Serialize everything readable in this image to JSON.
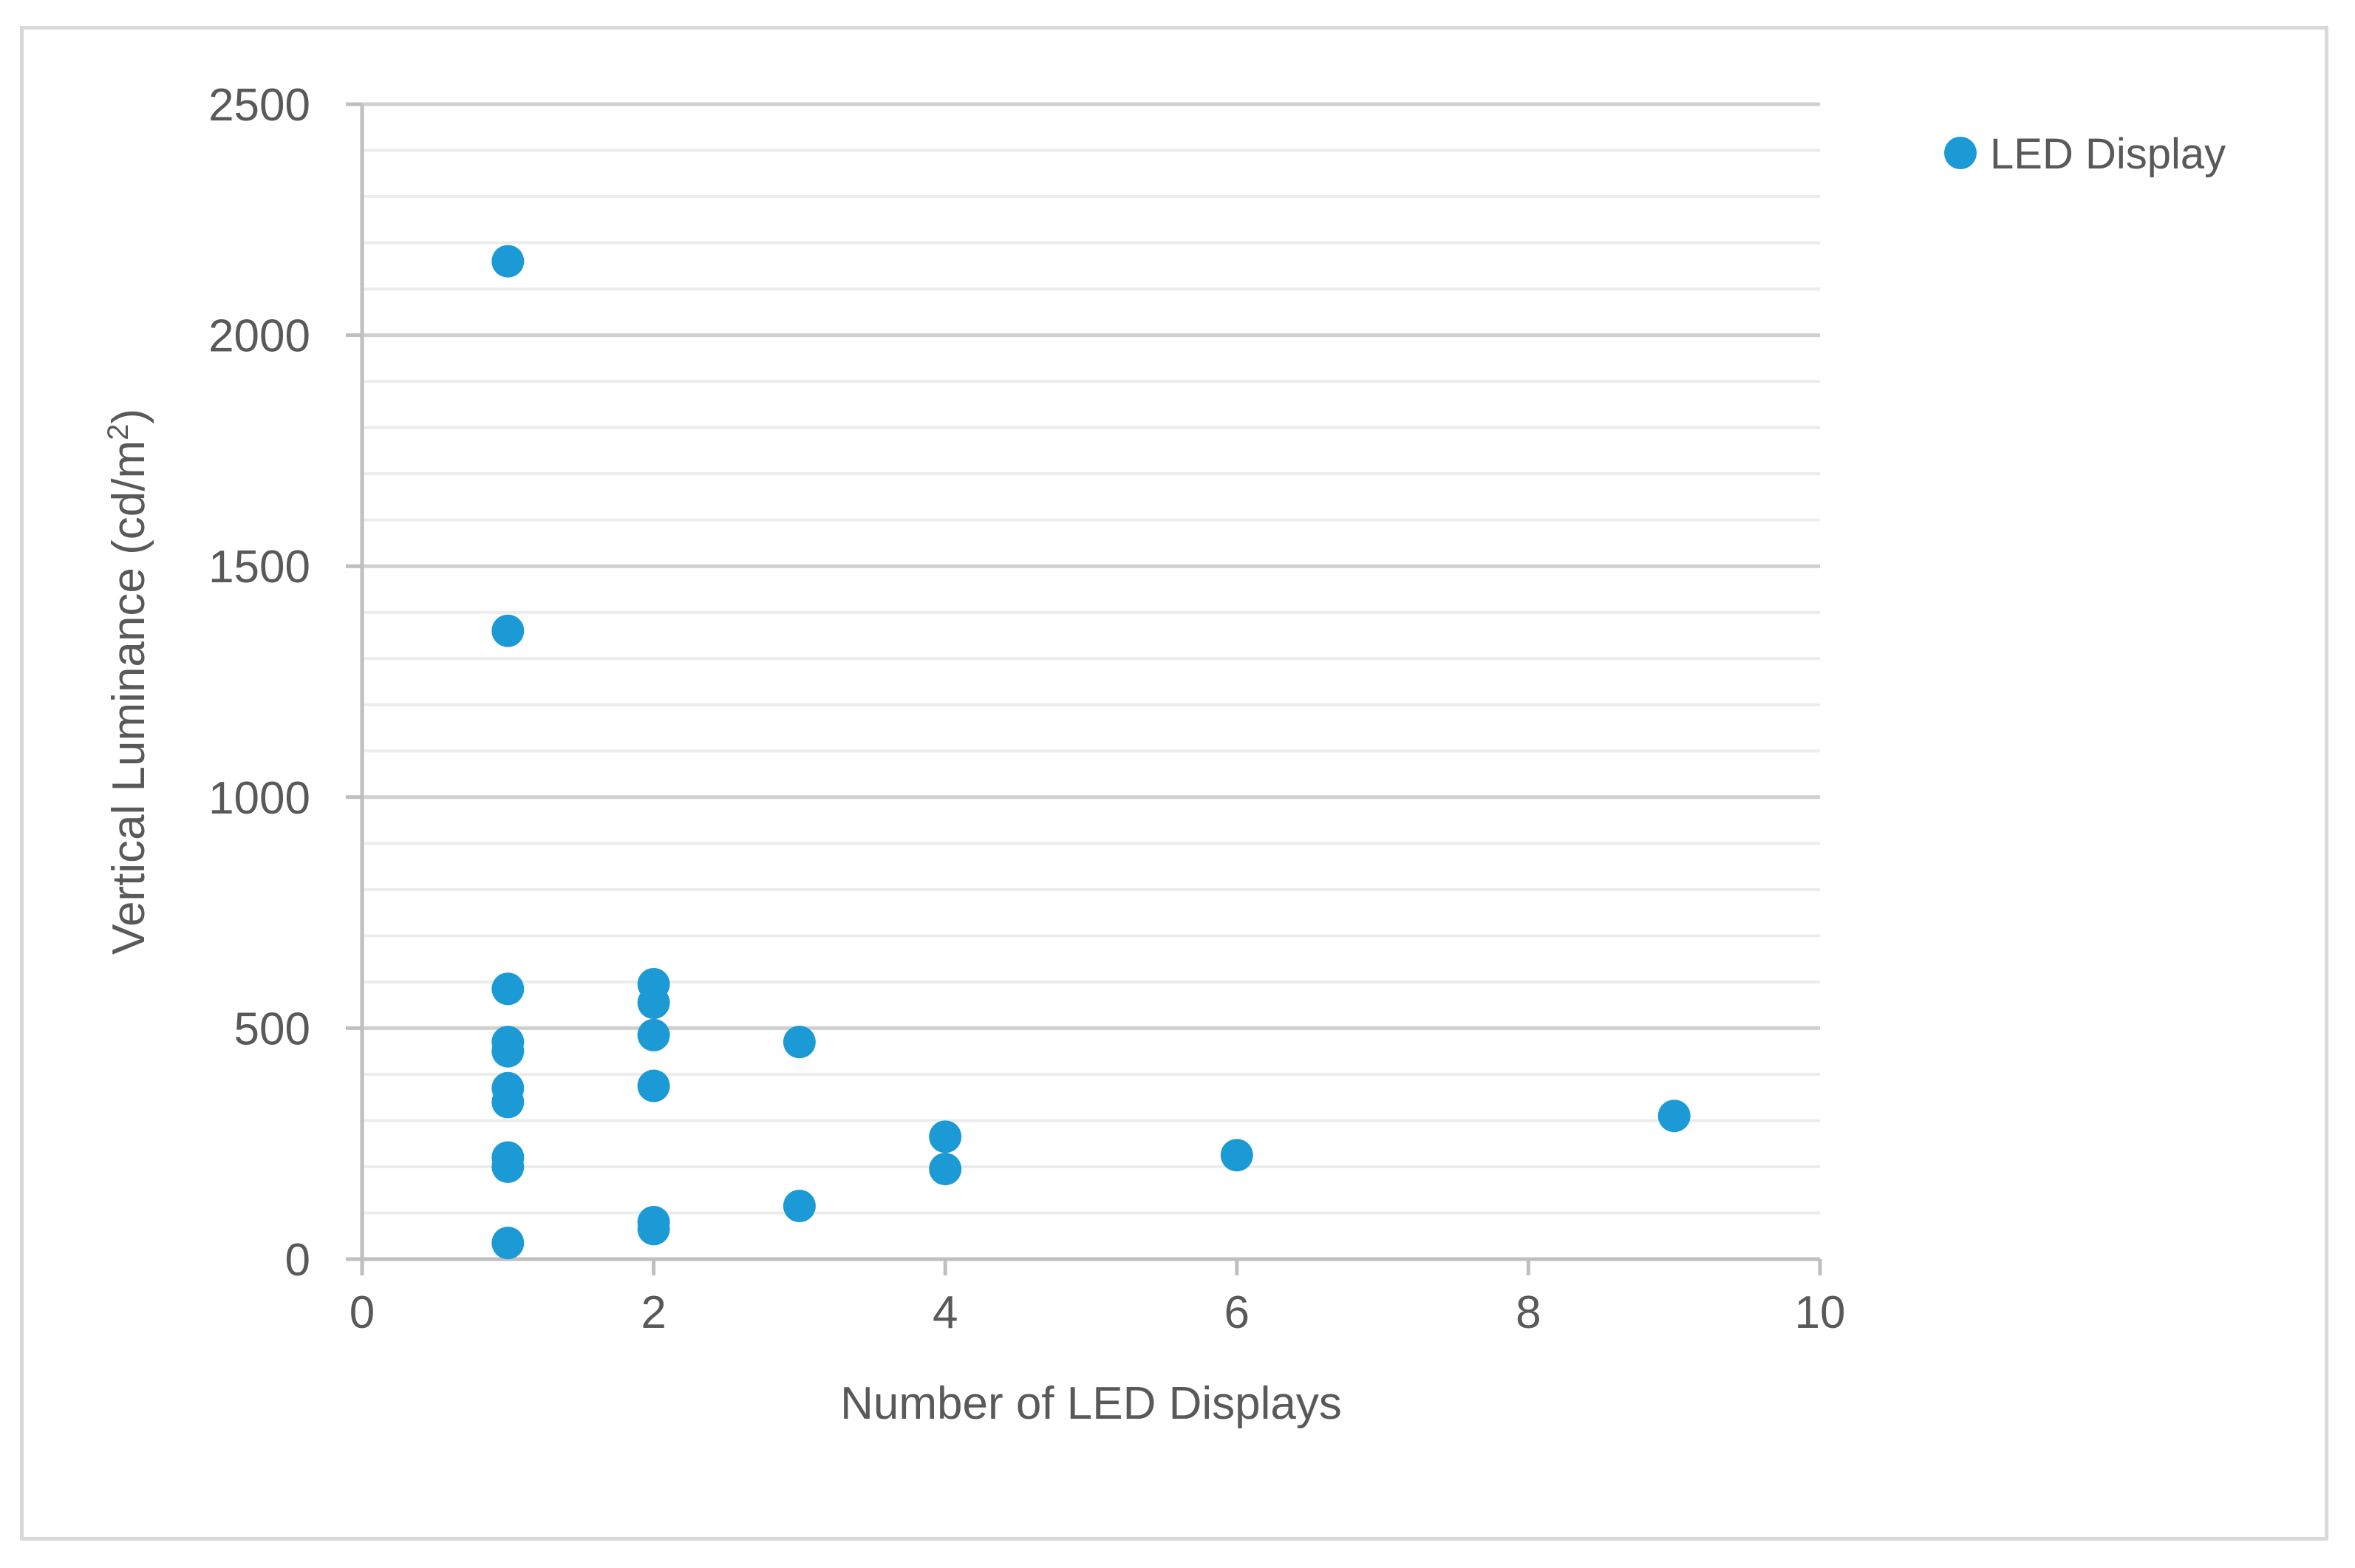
{
  "chart_data": {
    "type": "scatter",
    "title": "",
    "xlabel": "Number of LED Displays",
    "ylabel": {
      "text": "Vertical Luminance (cd/m",
      "superscript": "2",
      "suffix": ")"
    },
    "xlim": [
      0,
      10
    ],
    "ylim": [
      0,
      2500
    ],
    "x_ticks": [
      0,
      2,
      4,
      6,
      8,
      10
    ],
    "x_tick_labels": [
      "0",
      "2",
      "4",
      "6",
      "8",
      "10"
    ],
    "y_ticks": [
      0,
      500,
      1000,
      1500,
      2000,
      2500
    ],
    "y_tick_labels": [
      "0",
      "500",
      "1000",
      "1500",
      "2000",
      "2500"
    ],
    "y_minor_step": 100,
    "grid": true,
    "legend_position": "top-right",
    "colors": {
      "marker": "#1b9ad6",
      "major_grid": "#d0d0d0",
      "minor_grid": "#ececec",
      "axis": "#bfbfbf",
      "text": "#595959",
      "frame": "#d9d9d9"
    },
    "series": [
      {
        "name": "LED Display",
        "points": [
          {
            "x": 1,
            "y": 2160
          },
          {
            "x": 1,
            "y": 1360
          },
          {
            "x": 1,
            "y": 585
          },
          {
            "x": 1,
            "y": 470
          },
          {
            "x": 1,
            "y": 450
          },
          {
            "x": 1,
            "y": 370
          },
          {
            "x": 1,
            "y": 340
          },
          {
            "x": 1,
            "y": 220
          },
          {
            "x": 1,
            "y": 200
          },
          {
            "x": 1,
            "y": 35
          },
          {
            "x": 2,
            "y": 595
          },
          {
            "x": 2,
            "y": 555
          },
          {
            "x": 2,
            "y": 485
          },
          {
            "x": 2,
            "y": 375
          },
          {
            "x": 2,
            "y": 80
          },
          {
            "x": 2,
            "y": 65
          },
          {
            "x": 3,
            "y": 470
          },
          {
            "x": 3,
            "y": 115
          },
          {
            "x": 4,
            "y": 265
          },
          {
            "x": 4,
            "y": 195
          },
          {
            "x": 6,
            "y": 225
          },
          {
            "x": 9,
            "y": 310
          }
        ]
      }
    ]
  }
}
